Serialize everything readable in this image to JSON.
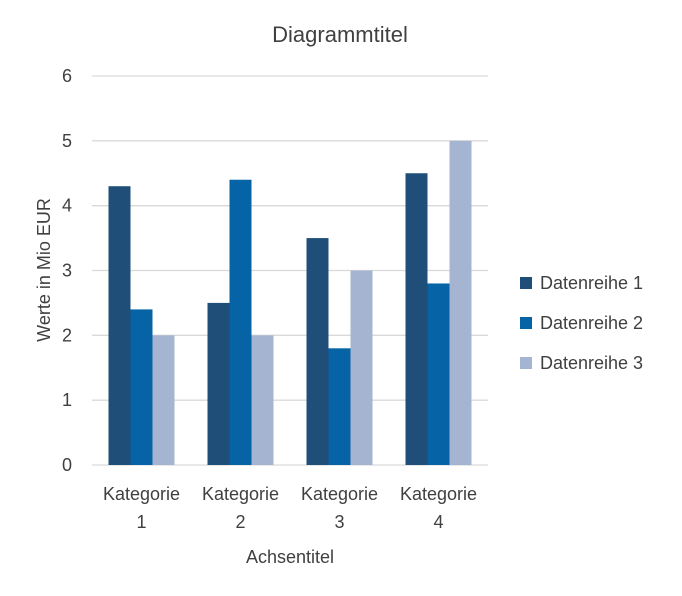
{
  "chart_data": {
    "type": "bar",
    "title": "Diagrammtitel",
    "xlabel": "Achsentitel",
    "ylabel": "Werte in Mio EUR",
    "ylim": [
      0,
      6
    ],
    "yticks": [
      "0",
      "1",
      "2",
      "3",
      "4",
      "5",
      "6"
    ],
    "categories": [
      [
        "Kategorie",
        "1"
      ],
      [
        "Kategorie",
        "2"
      ],
      [
        "Kategorie",
        "3"
      ],
      [
        "Kategorie",
        "4"
      ]
    ],
    "series": [
      {
        "name": "Datenreihe 1",
        "color": "#1f4e79",
        "values": [
          4.3,
          2.5,
          3.5,
          4.5
        ]
      },
      {
        "name": "Datenreihe 2",
        "color": "#0563a6",
        "values": [
          2.4,
          4.4,
          1.8,
          2.8
        ]
      },
      {
        "name": "Datenreihe 3",
        "color": "#a5b4d0",
        "values": [
          2.0,
          2.0,
          3.0,
          5.0
        ]
      }
    ],
    "grid": true,
    "legend": "right"
  }
}
